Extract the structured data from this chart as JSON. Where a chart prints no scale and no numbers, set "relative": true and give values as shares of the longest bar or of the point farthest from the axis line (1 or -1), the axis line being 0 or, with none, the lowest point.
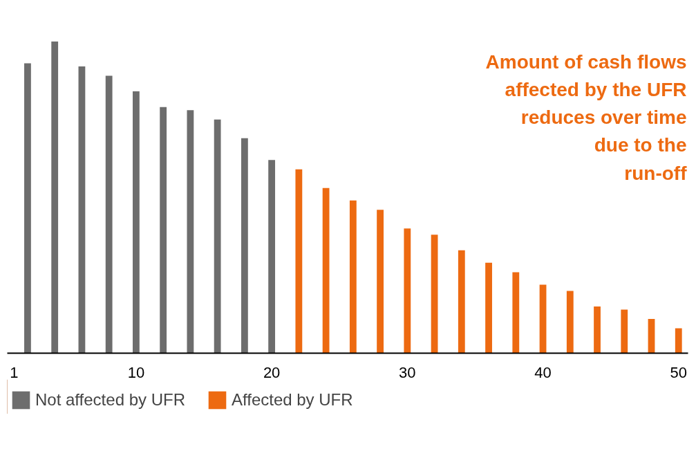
{
  "chart_data": {
    "type": "bar",
    "relative": true,
    "grid": false,
    "legend": "bottom left",
    "xlim": [
      0.5,
      50.7
    ],
    "xticks": [
      1,
      10,
      20,
      30,
      40,
      50
    ],
    "series": [
      {
        "name": "Not affected by UFR",
        "color": "#6d6d6d",
        "x": [
          2,
          4,
          6,
          8,
          10,
          12,
          14,
          16,
          18,
          20
        ],
        "values": [
          0.93,
          1,
          0.92,
          0.89,
          0.84,
          0.79,
          0.78,
          0.75,
          0.69,
          0.62
        ]
      },
      {
        "name": "Affected by UFR",
        "color": "#ed6a11",
        "x": [
          22,
          24,
          26,
          28,
          30,
          32,
          34,
          36,
          38,
          40,
          42,
          44,
          46,
          48,
          50
        ],
        "values": [
          0.59,
          0.53,
          0.49,
          0.46,
          0.4,
          0.38,
          0.33,
          0.29,
          0.26,
          0.22,
          0.2,
          0.15,
          0.14,
          0.11,
          0.08
        ]
      }
    ],
    "annotations": [
      "Amount of cash flows\naffected by the UFR\nreduces over time\ndue to the\nrun-off"
    ]
  }
}
